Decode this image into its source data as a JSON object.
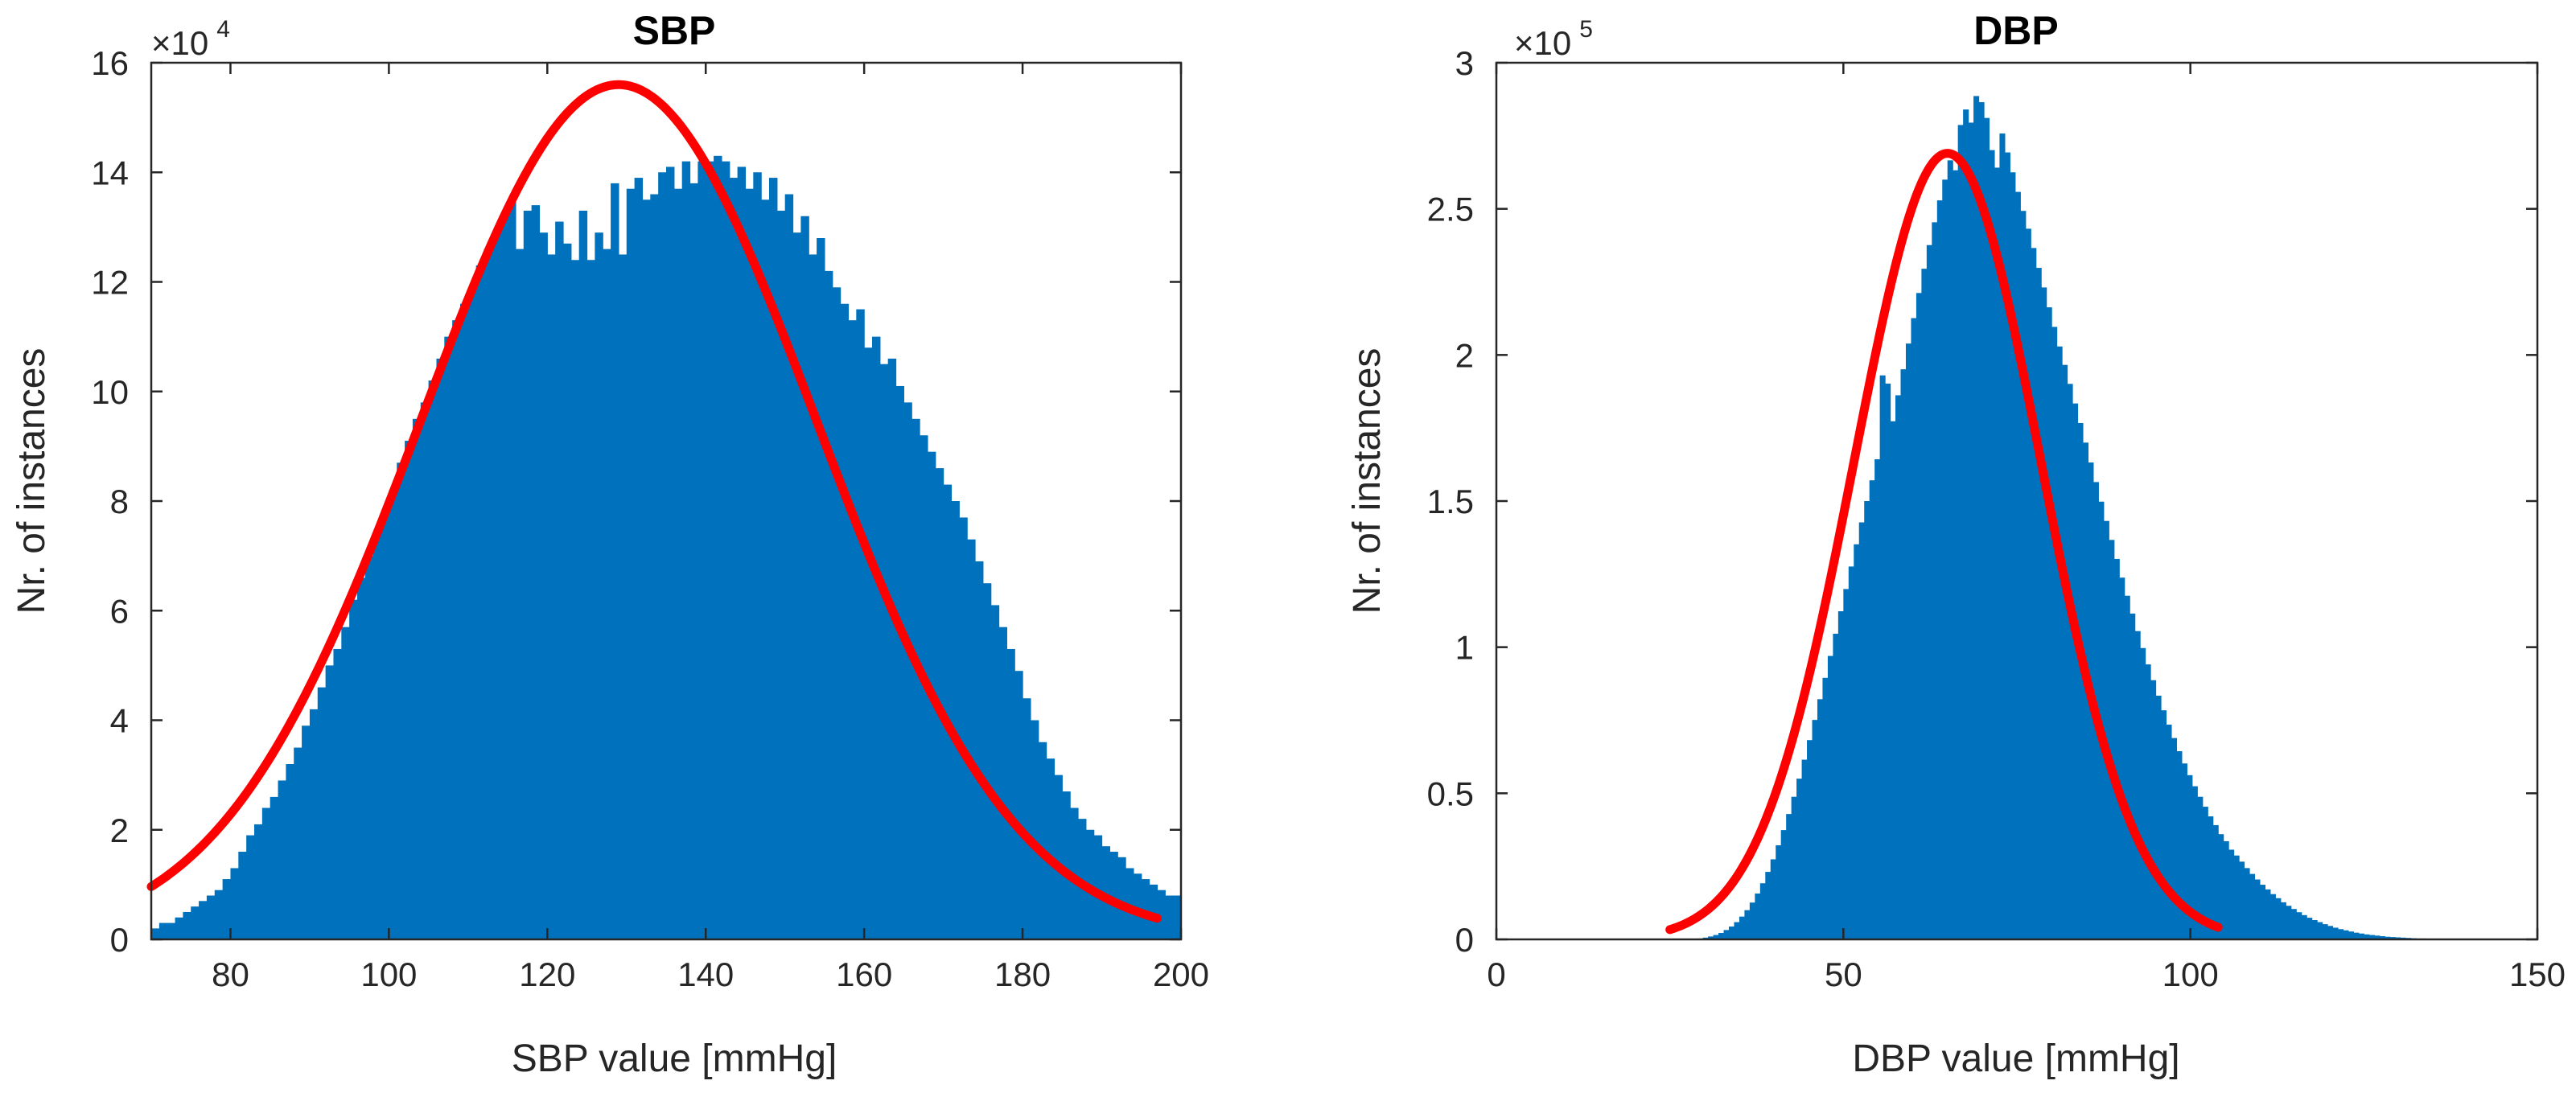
{
  "colors": {
    "bars": "#0072BD",
    "fit": "#FF0000"
  },
  "chart_data": [
    {
      "type": "bar",
      "subtype": "histogram",
      "title": "SBP",
      "xlabel": "SBP value [mmHg]",
      "ylabel": "Nr. of instances",
      "y_exponent_label": "×10",
      "y_exponent": "4",
      "xlim": [
        70,
        200
      ],
      "ylim": [
        0,
        16
      ],
      "xticks": [
        80,
        100,
        120,
        140,
        160,
        180,
        200
      ],
      "xtick_labels": [
        "80",
        "100",
        "120",
        "140",
        "160",
        "180",
        "200"
      ],
      "yticks": [
        0,
        2,
        4,
        6,
        8,
        10,
        12,
        14,
        16
      ],
      "ytick_labels": [
        "0",
        "2",
        "4",
        "6",
        "8",
        "10",
        "12",
        "14",
        "16"
      ],
      "bins": {
        "start": 70,
        "width": 1,
        "counts": [
          0.2,
          0.3,
          0.3,
          0.4,
          0.5,
          0.6,
          0.7,
          0.8,
          0.9,
          1.1,
          1.3,
          1.6,
          1.9,
          2.1,
          2.4,
          2.6,
          2.9,
          3.2,
          3.5,
          3.9,
          4.2,
          4.6,
          5.0,
          5.3,
          5.7,
          6.2,
          6.6,
          7.0,
          7.4,
          7.8,
          8.2,
          8.7,
          9.1,
          9.5,
          9.8,
          10.2,
          10.6,
          11.0,
          11.3,
          11.6,
          11.9,
          12.3,
          12.6,
          12.9,
          13.2,
          13.5,
          12.6,
          13.3,
          13.4,
          12.9,
          12.5,
          13.1,
          12.7,
          12.4,
          13.3,
          12.4,
          12.9,
          12.6,
          13.8,
          12.5,
          13.7,
          13.9,
          13.5,
          13.6,
          14.0,
          14.1,
          13.7,
          14.2,
          13.8,
          14.2,
          14.2,
          14.3,
          14.2,
          13.9,
          14.1,
          13.7,
          14.0,
          13.5,
          13.9,
          13.3,
          13.6,
          12.9,
          13.2,
          12.5,
          12.8,
          12.2,
          11.9,
          11.6,
          11.3,
          11.5,
          10.8,
          11.0,
          10.5,
          10.6,
          10.1,
          9.8,
          9.5,
          9.2,
          8.9,
          8.6,
          8.3,
          8.0,
          7.7,
          7.3,
          6.9,
          6.5,
          6.1,
          5.7,
          5.3,
          4.9,
          4.4,
          4.0,
          3.6,
          3.3,
          3.0,
          2.7,
          2.4,
          2.2,
          2.0,
          1.9,
          1.7,
          1.6,
          1.5,
          1.3,
          1.2,
          1.1,
          1.0,
          0.9,
          0.8,
          0.8,
          0.7,
          0.6,
          0.6,
          0.5,
          0.4,
          0.3,
          0.3,
          0.3,
          0.3,
          0.3,
          0.4,
          0.4,
          0.4,
          0.4,
          0.4,
          0.4
        ]
      },
      "fit": {
        "mu": 129,
        "sigma": 25,
        "peak": 15.6,
        "x_range": [
          70,
          197
        ]
      }
    },
    {
      "type": "bar",
      "subtype": "histogram",
      "title": "DBP",
      "xlabel": "DBP value [mmHg]",
      "ylabel": "Nr. of instances",
      "y_exponent_label": "×10",
      "y_exponent": "5",
      "xlim": [
        0,
        150
      ],
      "ylim": [
        0,
        3
      ],
      "xticks": [
        0,
        50,
        100,
        150
      ],
      "xtick_labels": [
        "0",
        "50",
        "100",
        "150"
      ],
      "yticks": [
        0,
        0.5,
        1,
        1.5,
        2,
        2.5,
        3
      ],
      "ytick_labels": [
        "0",
        "0.5",
        "1",
        "1.5",
        "2",
        "2.5",
        "3"
      ],
      "bins": {
        "start": 29,
        "width": 0.75,
        "counts": [
          0.003,
          0.006,
          0.01,
          0.015,
          0.022,
          0.032,
          0.044,
          0.059,
          0.078,
          0.1,
          0.126,
          0.157,
          0.192,
          0.231,
          0.274,
          0.322,
          0.374,
          0.429,
          0.488,
          0.55,
          0.615,
          0.682,
          0.751,
          0.822,
          0.895,
          0.97,
          1.046,
          1.123,
          1.199,
          1.276,
          1.352,
          1.427,
          1.5,
          1.571,
          1.643,
          1.93,
          1.902,
          1.773,
          1.862,
          1.951,
          2.039,
          2.126,
          2.212,
          2.295,
          2.376,
          2.454,
          2.529,
          2.6,
          2.666,
          2.632,
          2.787,
          2.84,
          2.795,
          2.886,
          2.865,
          2.811,
          2.701,
          2.641,
          2.758,
          2.693,
          2.625,
          2.558,
          2.493,
          2.432,
          2.366,
          2.298,
          2.231,
          2.163,
          2.096,
          2.029,
          1.966,
          1.901,
          1.834,
          1.767,
          1.7,
          1.632,
          1.565,
          1.498,
          1.432,
          1.367,
          1.302,
          1.238,
          1.176,
          1.115,
          1.055,
          0.997,
          0.941,
          0.887,
          0.834,
          0.784,
          0.735,
          0.689,
          0.644,
          0.602,
          0.562,
          0.524,
          0.488,
          0.454,
          0.421,
          0.391,
          0.36,
          0.336,
          0.307,
          0.287,
          0.266,
          0.244,
          0.224,
          0.205,
          0.187,
          0.171,
          0.155,
          0.141,
          0.127,
          0.115,
          0.104,
          0.093,
          0.083,
          0.074,
          0.066,
          0.059,
          0.052,
          0.046,
          0.04,
          0.035,
          0.031,
          0.027,
          0.023,
          0.02,
          0.017,
          0.015,
          0.013,
          0.011,
          0.009,
          0.008,
          0.007,
          0.006,
          0.005,
          0.004,
          0.003,
          0.003,
          0.002,
          0.002,
          0.001,
          0.001,
          0.001,
          0.001,
          0.001,
          0.001,
          0.001,
          0.001,
          0.001,
          0.001
        ]
      },
      "fit": {
        "mu": 65,
        "sigma": 13.5,
        "peak": 2.69,
        "x_range": [
          25,
          104
        ]
      }
    }
  ]
}
